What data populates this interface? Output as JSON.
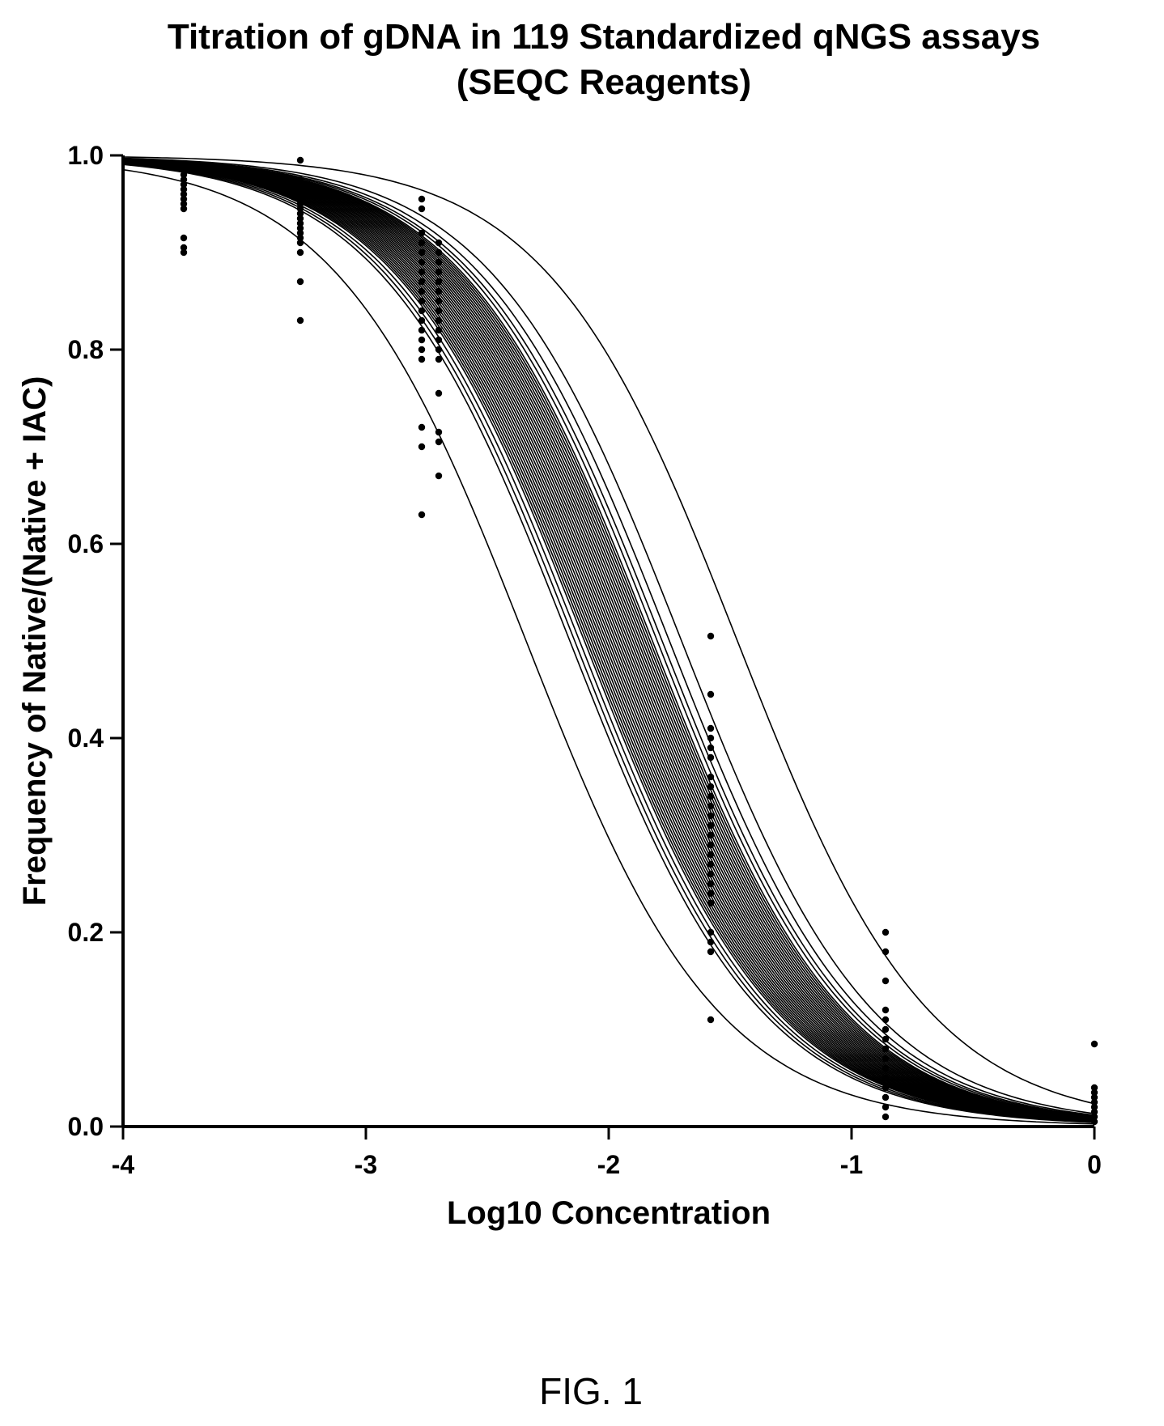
{
  "chart_data": {
    "type": "line",
    "title_lines": [
      "Titration of gDNA in 119 Standardized qNGS assays",
      "(SEQC Reagents)"
    ],
    "xlabel": "Log10 Concentration",
    "ylabel": "Frequency of Native/(Native + IAC)",
    "xlim": [
      -4,
      0
    ],
    "ylim": [
      0,
      1.0
    ],
    "xticks": [
      -4,
      -3,
      -2,
      -1,
      0
    ],
    "xtick_labels": [
      "-4",
      "-3",
      "-2",
      "-1",
      "0"
    ],
    "yticks": [
      0,
      0.2,
      0.4,
      0.6,
      0.8,
      1.0
    ],
    "ytick_labels": [
      "0.0",
      "0.2",
      "0.4",
      "0.6",
      "0.8",
      "1.0"
    ],
    "grid": false,
    "curve_model": "y = 1 / (1 + 10^((x - logEC50) * hill))",
    "curve_count": 119,
    "hill_slope": 1.1,
    "logEC50_values": [
      -2.34,
      -2.16,
      -2.14,
      -2.12,
      -2.1,
      -2.09,
      -2.08,
      -2.07,
      -2.06,
      -2.05,
      -2.04,
      -2.03,
      -2.02,
      -2.01,
      -2.0,
      -1.99,
      -1.98,
      -1.97,
      -1.96,
      -1.95,
      -1.94,
      -1.93,
      -1.92,
      -1.91,
      -1.9,
      -1.89,
      -1.88,
      -1.87,
      -1.86,
      -1.85,
      -1.84,
      -1.83,
      -1.82,
      -1.8,
      -1.78,
      -1.75,
      -1.7,
      -1.47
    ],
    "point_x_levels": [
      -3.75,
      -3.27,
      -2.77,
      -2.7,
      -1.58,
      -0.86,
      0
    ],
    "points": [
      {
        "x": -3.75,
        "y": [
          0.99,
          0.985,
          0.98,
          0.975,
          0.97,
          0.965,
          0.96,
          0.955,
          0.95,
          0.945,
          0.915,
          0.905,
          0.9
        ]
      },
      {
        "x": -3.27,
        "y": [
          0.995,
          0.975,
          0.97,
          0.965,
          0.96,
          0.955,
          0.95,
          0.945,
          0.94,
          0.935,
          0.93,
          0.925,
          0.92,
          0.915,
          0.91,
          0.9,
          0.87,
          0.83
        ]
      },
      {
        "x": -2.77,
        "y": [
          0.955,
          0.945,
          0.92,
          0.91,
          0.9,
          0.89,
          0.88,
          0.87,
          0.86,
          0.85,
          0.84,
          0.83,
          0.82,
          0.81,
          0.8,
          0.79,
          0.72,
          0.7,
          0.63
        ]
      },
      {
        "x": -2.7,
        "y": [
          0.91,
          0.9,
          0.89,
          0.88,
          0.87,
          0.86,
          0.85,
          0.84,
          0.83,
          0.82,
          0.81,
          0.8,
          0.79,
          0.755,
          0.715,
          0.705,
          0.67
        ]
      },
      {
        "x": -1.58,
        "y": [
          0.505,
          0.445,
          0.41,
          0.4,
          0.39,
          0.38,
          0.36,
          0.35,
          0.34,
          0.33,
          0.32,
          0.31,
          0.3,
          0.29,
          0.28,
          0.27,
          0.26,
          0.25,
          0.24,
          0.23,
          0.2,
          0.19,
          0.18,
          0.11
        ]
      },
      {
        "x": -0.86,
        "y": [
          0.2,
          0.18,
          0.15,
          0.12,
          0.11,
          0.1,
          0.09,
          0.08,
          0.07,
          0.06,
          0.05,
          0.04,
          0.03,
          0.02,
          0.01
        ]
      },
      {
        "x": 0,
        "y": [
          0.085,
          0.04,
          0.035,
          0.03,
          0.025,
          0.02,
          0.015,
          0.01,
          0.005
        ]
      }
    ]
  },
  "figure_label": "FIG. 1"
}
